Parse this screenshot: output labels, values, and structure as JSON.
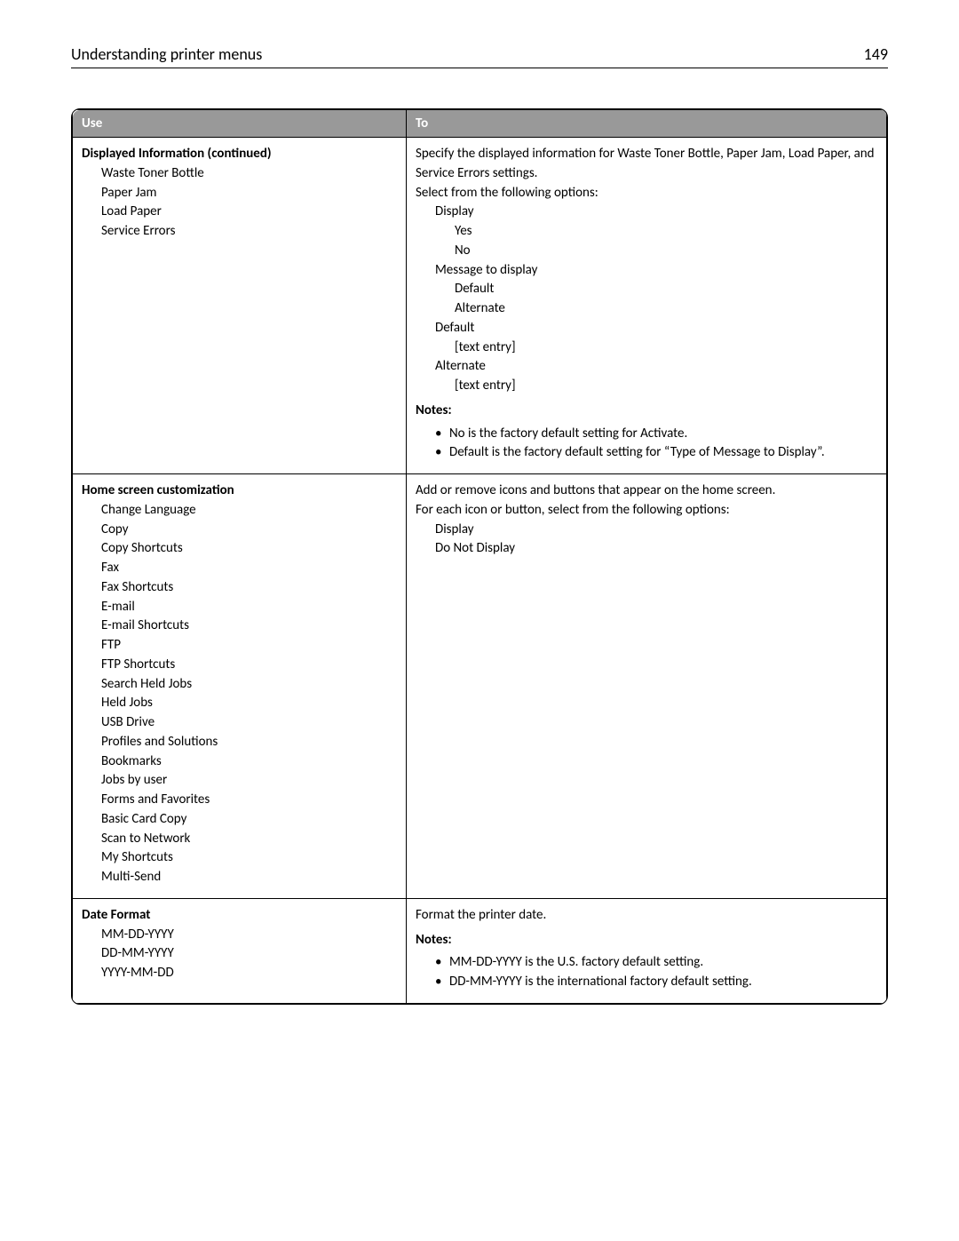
{
  "header": {
    "title": "Understanding printer menus",
    "page_number": "149"
  },
  "table": {
    "columns": [
      "Use",
      "To"
    ],
    "rows": [
      {
        "use": {
          "heading": "Displayed Information (continued)",
          "items": [
            "Waste Toner Bottle",
            "Paper Jam",
            "Load Paper",
            "Service Errors"
          ]
        },
        "to": {
          "intro_lines": [
            "Specify the displayed information for Waste Toner Bottle, Paper Jam, Load Paper, and Service Errors settings.",
            "Select from the following options:"
          ],
          "options": [
            {
              "text": "Display",
              "indent": 1
            },
            {
              "text": "Yes",
              "indent": 2
            },
            {
              "text": "No",
              "indent": 2
            },
            {
              "text": "Message to display",
              "indent": 1
            },
            {
              "text": "Default",
              "indent": 2
            },
            {
              "text": "Alternate",
              "indent": 2
            },
            {
              "text": "Default",
              "indent": 1
            },
            {
              "text": "[text entry]",
              "indent": 2
            },
            {
              "text": "Alternate",
              "indent": 1
            },
            {
              "text": "[text entry]",
              "indent": 2
            }
          ],
          "notes_label": "Notes:",
          "notes": [
            "No is the factory default setting for Activate.",
            "Default is the factory default setting for “Type of Message to Display”."
          ]
        }
      },
      {
        "use": {
          "heading": "Home screen customization",
          "items": [
            "Change Language",
            "Copy",
            "Copy Shortcuts",
            "Fax",
            "Fax Shortcuts",
            "E-mail",
            "E-mail Shortcuts",
            "FTP",
            "FTP Shortcuts",
            "Search Held Jobs",
            "Held Jobs",
            "USB Drive",
            "Profiles and Solutions",
            "Bookmarks",
            "Jobs by user",
            "Forms and Favorites",
            "Basic Card Copy",
            "Scan to Network",
            "My Shortcuts",
            "Multi-Send"
          ]
        },
        "to": {
          "intro_lines": [
            "Add or remove icons and buttons that appear on the home screen.",
            "For each icon or button, select from the following options:"
          ],
          "options": [
            {
              "text": "Display",
              "indent": 1
            },
            {
              "text": "Do Not Display",
              "indent": 1
            }
          ],
          "notes_label": null,
          "notes": []
        }
      },
      {
        "use": {
          "heading": "Date Format",
          "items": [
            "MM-DD-YYYY",
            "DD-MM-YYYY",
            "YYYY-MM-DD"
          ]
        },
        "to": {
          "intro_lines": [
            "Format the printer date."
          ],
          "options": [],
          "notes_label": "Notes:",
          "notes": [
            "MM-DD-YYYY is the U.S. factory default setting.",
            "DD-MM-YYYY is the international factory default setting."
          ]
        }
      }
    ]
  }
}
